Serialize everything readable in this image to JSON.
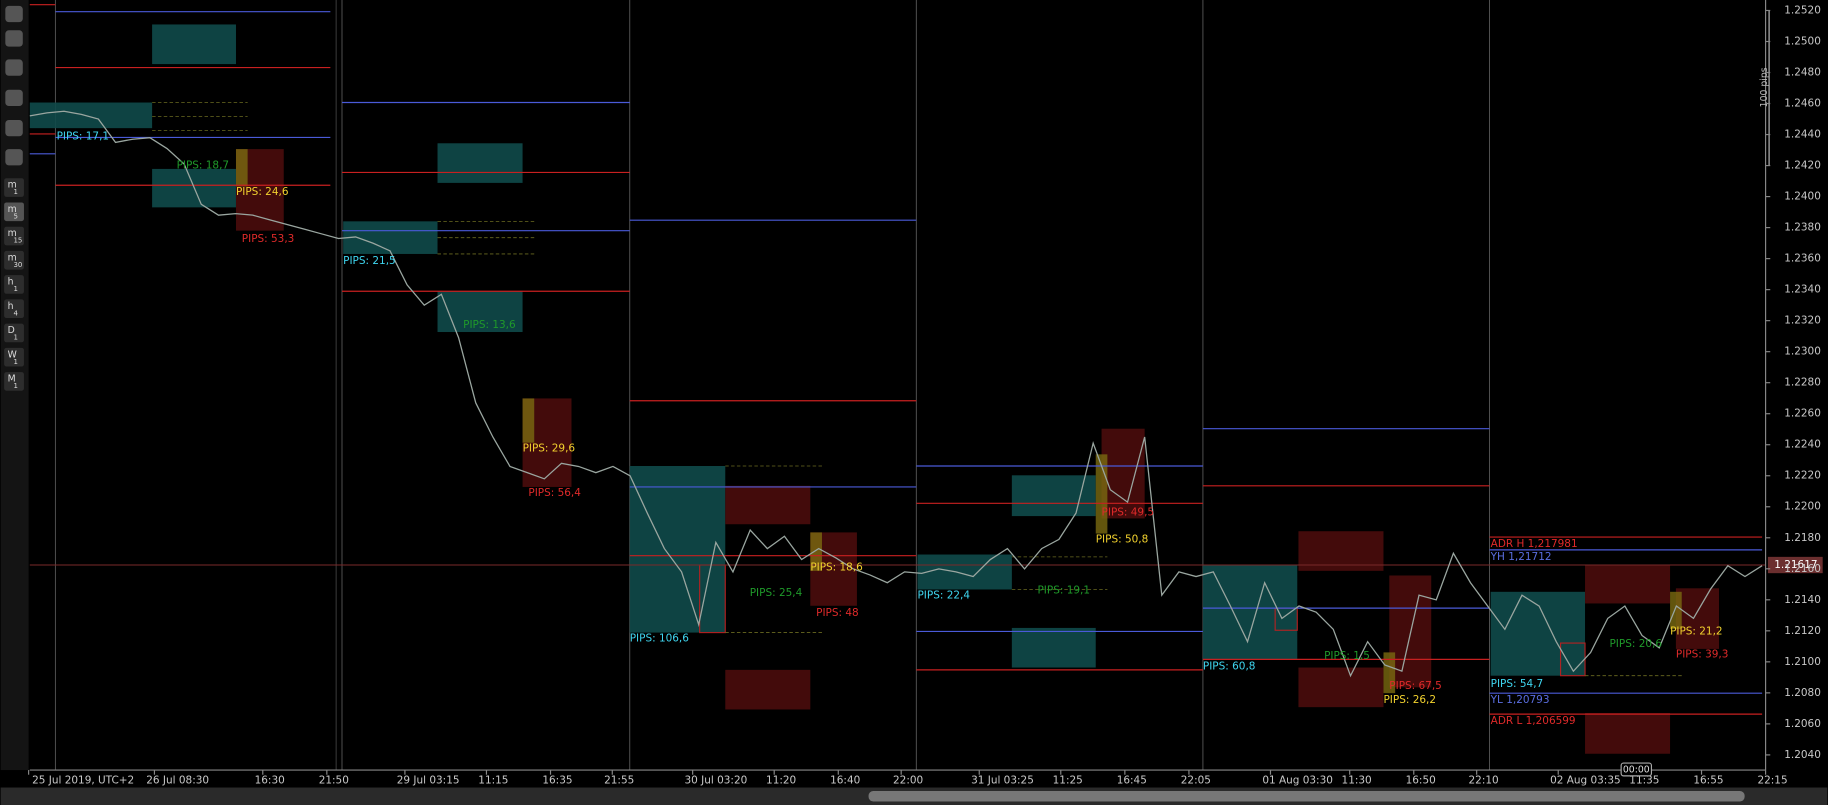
{
  "toolbar": {
    "timeframes": [
      {
        "letter": "m",
        "n": "1"
      },
      {
        "letter": "m",
        "n": "5"
      },
      {
        "letter": "m",
        "n": "15"
      },
      {
        "letter": "m",
        "n": "30"
      },
      {
        "letter": "h",
        "n": "1"
      },
      {
        "letter": "h",
        "n": "4"
      },
      {
        "letter": "D",
        "n": "1"
      },
      {
        "letter": "W",
        "n": "1"
      },
      {
        "letter": "M",
        "n": "1"
      }
    ]
  },
  "price_axis": {
    "labels": [
      "1.2520",
      "1.2500",
      "1.2480",
      "1.2460",
      "1.2440",
      "1.2420",
      "1.2400",
      "1.2380",
      "1.2360",
      "1.2340",
      "1.2320",
      "1.2300",
      "1.2280",
      "1.2260",
      "1.2240",
      "1.2220",
      "1.2200",
      "1.2180",
      "1.2160",
      "1.2140",
      "1.2120",
      "1.2100",
      "1.2080",
      "1.2060",
      "1.2040"
    ],
    "current": "1.21617",
    "range_label": "100 pips"
  },
  "time_axis": {
    "labels": [
      "25 Jul 2019, UTC+2",
      "26 Jul 08:30",
      "16:30",
      "21:50",
      "29 Jul 03:15",
      "11:15",
      "16:35",
      "21:55",
      "30 Jul 03:20",
      "11:20",
      "16:40",
      "22:00",
      "31 Jul 03:25",
      "11:25",
      "16:45",
      "22:05",
      "01 Aug 03:30",
      "11:30",
      "16:50",
      "22:10",
      "02 Aug 03:35",
      "11:35",
      "16:55",
      "22:15"
    ],
    "cursor": "00:00"
  },
  "price_series": {
    "color": "#9aa6a0",
    "values": [
      1.2452,
      1.2454,
      1.2455,
      1.2453,
      1.245,
      1.2435,
      1.2437,
      1.2438,
      1.2431,
      1.2421,
      1.2395,
      1.2388,
      1.2389,
      1.2388,
      1.2385,
      1.2382,
      1.2379,
      1.2376,
      1.2373,
      1.2374,
      1.237,
      1.2365,
      1.2343,
      1.233,
      1.2337,
      1.2309,
      1.2267,
      1.2245,
      1.2226,
      1.2222,
      1.2218,
      1.2228,
      1.2226,
      1.2222,
      1.2226,
      1.222,
      1.2196,
      1.2173,
      1.2158,
      1.2124,
      1.2177,
      1.2158,
      1.2185,
      1.2173,
      1.2181,
      1.2166,
      1.2173,
      1.2167,
      1.216,
      1.2156,
      1.2151,
      1.2158,
      1.2157,
      1.216,
      1.2158,
      1.2155,
      1.2166,
      1.2173,
      1.216,
      1.2173,
      1.2179,
      1.2196,
      1.2241,
      1.2211,
      1.2203,
      1.2245,
      1.2143,
      1.2158,
      1.2155,
      1.2158,
      1.2136,
      1.2113,
      1.2151,
      1.2128,
      1.2136,
      1.2132,
      1.2121,
      1.2091,
      1.2113,
      1.2098,
      1.2094,
      1.2143,
      1.214,
      1.217,
      1.2151,
      1.2136,
      1.2121,
      1.2143,
      1.2136,
      1.2113,
      1.2094,
      1.2106,
      1.2128,
      1.2136,
      1.2117,
      1.2109,
      1.2136,
      1.2128,
      1.2147,
      1.2162,
      1.2155,
      1.2162
    ]
  },
  "annotations": [
    {
      "text": "PIPS: 17,1",
      "color": "#3fd6f0"
    },
    {
      "text": "PIPS: 18,7",
      "color": "#1f9a2a"
    },
    {
      "text": "PIPS: 24,6",
      "color": "#f2d22e"
    },
    {
      "text": "PIPS: 53,3",
      "color": "#e02a2a"
    },
    {
      "text": "PIPS: 21,5",
      "color": "#3fd6f0"
    },
    {
      "text": "PIPS: 13,6",
      "color": "#1f9a2a"
    },
    {
      "text": "PIPS: 29,6",
      "color": "#f2d22e"
    },
    {
      "text": "PIPS: 56,4",
      "color": "#e02a2a"
    },
    {
      "text": "PIPS: 106,6",
      "color": "#3fd6f0"
    },
    {
      "text": "PIPS: 25,4",
      "color": "#1f9a2a"
    },
    {
      "text": "PIPS: 18,6",
      "color": "#f2d22e"
    },
    {
      "text": "PIPS: 48",
      "color": "#e02a2a"
    },
    {
      "text": "PIPS: 22,4",
      "color": "#3fd6f0"
    },
    {
      "text": "PIPS: 19,1",
      "color": "#1f9a2a"
    },
    {
      "text": "PIPS: 50,8",
      "color": "#f2d22e"
    },
    {
      "text": "PIPS: 49,5",
      "color": "#e02a2a"
    },
    {
      "text": "PIPS: 60,8",
      "color": "#3fd6f0"
    },
    {
      "text": "PIPS: 1,5",
      "color": "#1f9a2a"
    },
    {
      "text": "PIPS: 26,2",
      "color": "#f2d22e"
    },
    {
      "text": "PIPS: 67,5",
      "color": "#e02a2a"
    },
    {
      "text": "PIPS: 54,7",
      "color": "#3fd6f0"
    },
    {
      "text": "PIPS: 20,6",
      "color": "#1f9a2a"
    },
    {
      "text": "PIPS: 21,2",
      "color": "#f2d22e"
    },
    {
      "text": "PIPS: 39,3",
      "color": "#e02a2a"
    }
  ],
  "levels": [
    {
      "text": "ADR H 1,217981",
      "color": "#e02a2a"
    },
    {
      "text": "YH 1,21712",
      "color": "#5a6ee0"
    },
    {
      "text": "YL 1,20793",
      "color": "#5a6ee0"
    },
    {
      "text": "ADR L 1,206599",
      "color": "#e02a2a"
    }
  ]
}
